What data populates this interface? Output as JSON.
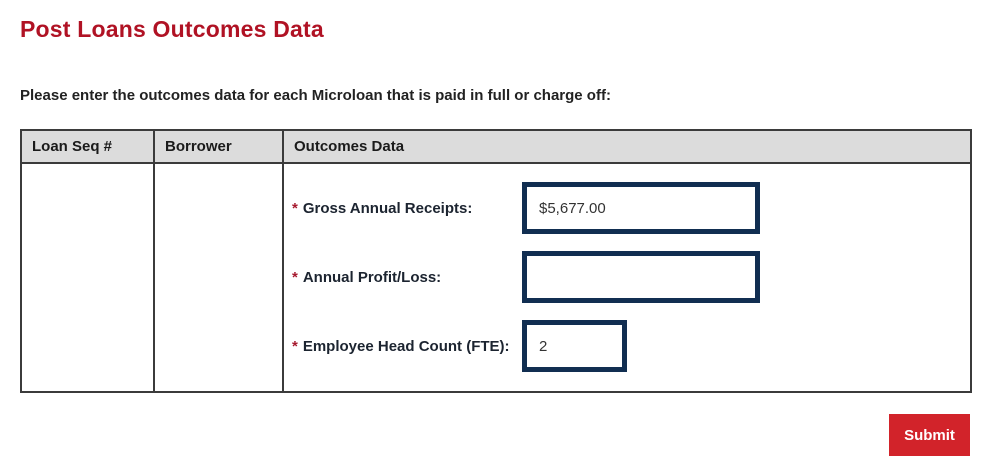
{
  "page": {
    "title": "Post Loans Outcomes Data",
    "instructions": "Please enter the outcomes data for each Microloan that is paid in full or charge off:"
  },
  "table": {
    "headers": [
      "Loan Seq #",
      "Borrower",
      "Outcomes Data"
    ],
    "row": {
      "loan_seq": "",
      "borrower": "",
      "fields": [
        {
          "required_marker": "*",
          "label": "Gross Annual Receipts:",
          "value": "$5,677.00"
        },
        {
          "required_marker": "*",
          "label": "Annual Profit/Loss:",
          "value": ""
        },
        {
          "required_marker": "*",
          "label": "Employee Head Count (FTE):",
          "value": "2"
        }
      ]
    }
  },
  "actions": {
    "submit_label": "Submit"
  },
  "colors": {
    "title_red": "#b01224",
    "required_red": "#a6192e",
    "submit_red": "#d2232a",
    "input_border_navy": "#112e51",
    "header_gray": "#dcdcdc",
    "border_dark": "#3b3b3b"
  }
}
